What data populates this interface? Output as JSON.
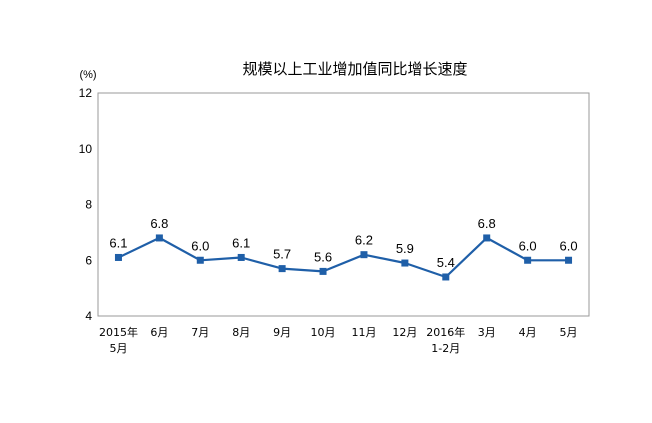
{
  "chart_data": {
    "type": "line",
    "title": "规模以上工业增加值同比增长速度",
    "unit_label": "(%)",
    "xlabel": "",
    "ylabel": "%",
    "ylim": [
      4,
      12
    ],
    "yticks": [
      "4",
      "6",
      "8",
      "10",
      "12"
    ],
    "ytick_values": [
      4,
      6,
      8,
      10,
      12
    ],
    "categories": [
      {
        "line1": "2015年",
        "line2": "5月"
      },
      {
        "line1": "6月",
        "line2": ""
      },
      {
        "line1": "7月",
        "line2": ""
      },
      {
        "line1": "8月",
        "line2": ""
      },
      {
        "line1": "9月",
        "line2": ""
      },
      {
        "line1": "10月",
        "line2": ""
      },
      {
        "line1": "11月",
        "line2": ""
      },
      {
        "line1": "12月",
        "line2": ""
      },
      {
        "line1": "2016年",
        "line2": "1-2月"
      },
      {
        "line1": "3月",
        "line2": ""
      },
      {
        "line1": "4月",
        "line2": ""
      },
      {
        "line1": "5月",
        "line2": ""
      }
    ],
    "values": [
      6.1,
      6.8,
      6.0,
      6.1,
      5.7,
      5.6,
      6.2,
      5.9,
      5.4,
      6.8,
      6.0,
      6.0
    ],
    "value_labels": [
      "6.1",
      "6.8",
      "6.0",
      "6.1",
      "5.7",
      "5.6",
      "6.2",
      "5.9",
      "5.4",
      "6.8",
      "6.0",
      "6.0"
    ],
    "series_color": "#1f5fa8",
    "grid": false,
    "legend": "none"
  }
}
